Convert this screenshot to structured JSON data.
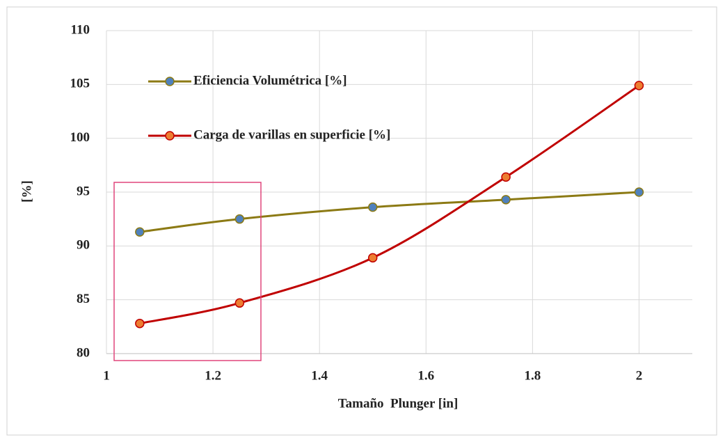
{
  "chart_data": {
    "type": "line",
    "x_label": "Tamaño  Plunger [in]",
    "y_label": "[%]",
    "x": [
      1.0625,
      1.25,
      1.5,
      1.75,
      2
    ],
    "series": [
      {
        "name": "Eficiencia Volumétrica [%]",
        "color": "#8c7a14",
        "marker_color": "#4f81bd",
        "values": [
          91.3,
          92.5,
          93.6,
          94.3,
          95.0
        ]
      },
      {
        "name": "Carga de varillas en superficie [%]",
        "color": "#c00000",
        "marker_color": "#ed7d31",
        "values": [
          82.8,
          84.7,
          88.9,
          96.4,
          104.9
        ]
      }
    ],
    "xlim": [
      1,
      2.1
    ],
    "xticks": [
      1,
      1.2,
      1.4,
      1.6,
      1.8,
      2
    ],
    "ylim": [
      80,
      110
    ],
    "yticks": [
      80,
      85,
      90,
      95,
      100,
      105,
      110
    ],
    "grid": true,
    "legend": "upper left"
  }
}
